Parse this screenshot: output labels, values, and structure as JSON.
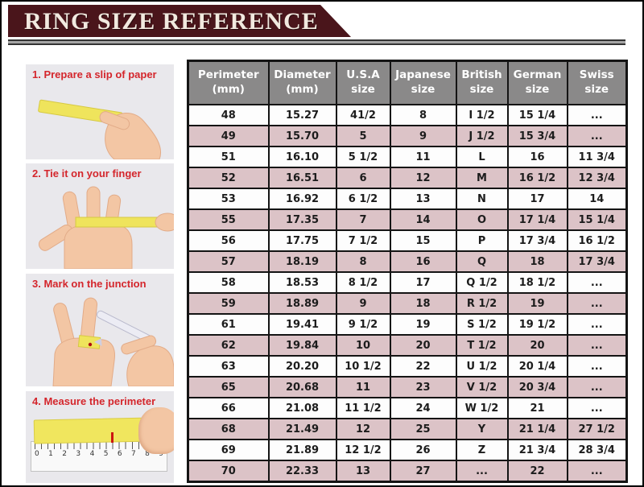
{
  "banner": {
    "title": "RING SIZE REFERENCE"
  },
  "steps": [
    {
      "label": "1. Prepare a slip of paper"
    },
    {
      "label": "2. Tie it on your finger"
    },
    {
      "label": "3. Mark on the junction"
    },
    {
      "label": "4. Measure the perimeter"
    }
  ],
  "ruler": {
    "numbers": [
      "0",
      "1",
      "2",
      "3",
      "4",
      "5",
      "6",
      "7",
      "8",
      "9"
    ]
  },
  "colors": {
    "banner_maroon": "#4a151b",
    "step_title_red": "#d4262c",
    "header_gray": "#8a8989",
    "row_pink": "#dcc3c7",
    "paper_yellow": "#f0e65e"
  },
  "chart_data": {
    "type": "table",
    "title": "RING SIZE REFERENCE",
    "columns": [
      {
        "line1": "Perimeter",
        "line2": "(mm)"
      },
      {
        "line1": "Diameter",
        "line2": "(mm)"
      },
      {
        "line1": "U.S.A",
        "line2": "size"
      },
      {
        "line1": "Japanese",
        "line2": "size"
      },
      {
        "line1": "British",
        "line2": "size"
      },
      {
        "line1": "German",
        "line2": "size"
      },
      {
        "line1": "Swiss",
        "line2": "size"
      }
    ],
    "rows": [
      [
        "48",
        "15.27",
        "41/2",
        "8",
        "I 1/2",
        "15 1/4",
        "..."
      ],
      [
        "49",
        "15.70",
        "5",
        "9",
        "J 1/2",
        "15 3/4",
        "..."
      ],
      [
        "51",
        "16.10",
        "5 1/2",
        "11",
        "L",
        "16",
        "11 3/4"
      ],
      [
        "52",
        "16.51",
        "6",
        "12",
        "M",
        "16 1/2",
        "12 3/4"
      ],
      [
        "53",
        "16.92",
        "6 1/2",
        "13",
        "N",
        "17",
        "14"
      ],
      [
        "55",
        "17.35",
        "7",
        "14",
        "O",
        "17 1/4",
        "15 1/4"
      ],
      [
        "56",
        "17.75",
        "7 1/2",
        "15",
        "P",
        "17 3/4",
        "16 1/2"
      ],
      [
        "57",
        "18.19",
        "8",
        "16",
        "Q",
        "18",
        "17 3/4"
      ],
      [
        "58",
        "18.53",
        "8 1/2",
        "17",
        "Q 1/2",
        "18 1/2",
        "..."
      ],
      [
        "59",
        "18.89",
        "9",
        "18",
        "R 1/2",
        "19",
        "..."
      ],
      [
        "61",
        "19.41",
        "9 1/2",
        "19",
        "S 1/2",
        "19 1/2",
        "..."
      ],
      [
        "62",
        "19.84",
        "10",
        "20",
        "T 1/2",
        "20",
        "..."
      ],
      [
        "63",
        "20.20",
        "10 1/2",
        "22",
        "U 1/2",
        "20 1/4",
        "..."
      ],
      [
        "65",
        "20.68",
        "11",
        "23",
        "V 1/2",
        "20 3/4",
        "..."
      ],
      [
        "66",
        "21.08",
        "11 1/2",
        "24",
        "W 1/2",
        "21",
        "..."
      ],
      [
        "68",
        "21.49",
        "12",
        "25",
        "Y",
        "21 1/4",
        "27 1/2"
      ],
      [
        "69",
        "21.89",
        "12 1/2",
        "26",
        "Z",
        "21 3/4",
        "28 3/4"
      ],
      [
        "70",
        "22.33",
        "13",
        "27",
        "...",
        "22",
        "..."
      ]
    ]
  }
}
